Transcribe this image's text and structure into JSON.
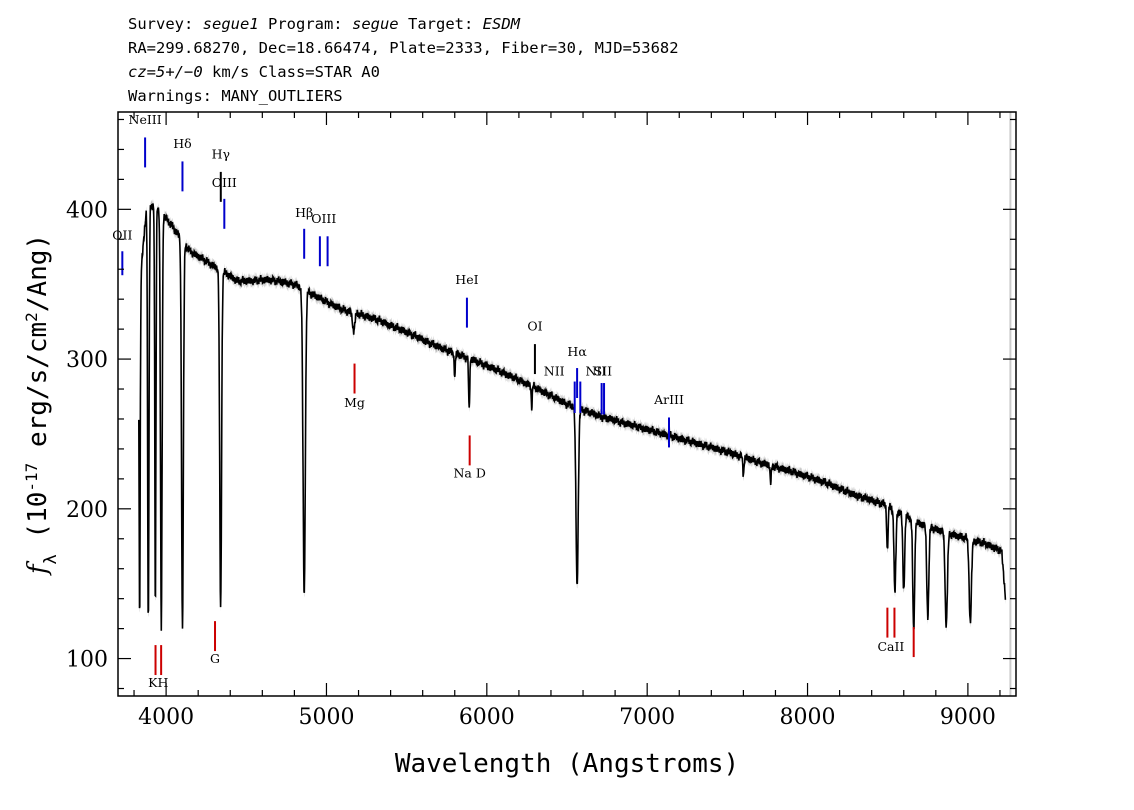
{
  "header": {
    "line1": {
      "survey_label": "Survey: ",
      "survey": "segue1",
      "program_label": " Program: ",
      "program": "segue",
      "target_label": " Target: ",
      "target": "ESDM"
    },
    "line2": "RA=299.68270, Dec=18.66474, Plate=2333, Fiber=30, MJD=53682",
    "line3": {
      "cz_label": "cz=5+/−0",
      "rest": " km/s Class=STAR A0"
    },
    "line4": "Warnings: MANY_OUTLIERS"
  },
  "chart_data": {
    "type": "line",
    "xlabel": "Wavelength (Angstroms)",
    "ylabel": "f_λ (10^-17 erg/s/cm^2/Ang)",
    "xlim": [
      3700,
      9300
    ],
    "ylim": [
      75,
      465
    ],
    "x_ticks": [
      "4000",
      "5000",
      "6000",
      "7000",
      "8000",
      "9000"
    ],
    "y_ticks": [
      "100",
      "200",
      "300",
      "400"
    ],
    "grid": false,
    "continuum": [
      [
        3830,
        340
      ],
      [
        3880,
        405
      ],
      [
        3950,
        400
      ],
      [
        4030,
        390
      ],
      [
        4150,
        372
      ],
      [
        4300,
        362
      ],
      [
        4450,
        352
      ],
      [
        4650,
        353
      ],
      [
        4800,
        350
      ],
      [
        4950,
        341
      ],
      [
        5100,
        333
      ],
      [
        5300,
        327
      ],
      [
        5500,
        318
      ],
      [
        5700,
        308
      ],
      [
        5900,
        300
      ],
      [
        6100,
        291
      ],
      [
        6300,
        281
      ],
      [
        6500,
        270
      ],
      [
        6700,
        262
      ],
      [
        6900,
        256
      ],
      [
        7100,
        250
      ],
      [
        7300,
        244
      ],
      [
        7500,
        238
      ],
      [
        7700,
        231
      ],
      [
        7900,
        225
      ],
      [
        8100,
        218
      ],
      [
        8300,
        209
      ],
      [
        8480,
        203
      ],
      [
        8700,
        190
      ],
      [
        8900,
        183
      ],
      [
        9100,
        177
      ],
      [
        9210,
        172
      ],
      [
        9235,
        140
      ]
    ],
    "absorption_lines": [
      {
        "x": 3835,
        "depth": 220,
        "w": 5
      },
      {
        "x": 3889,
        "depth": 280,
        "w": 6
      },
      {
        "x": 3933,
        "depth": 270,
        "w": 5
      },
      {
        "x": 3970,
        "depth": 280,
        "w": 7
      },
      {
        "x": 4102,
        "depth": 258,
        "w": 8
      },
      {
        "x": 4340,
        "depth": 228,
        "w": 8
      },
      {
        "x": 4861,
        "depth": 203,
        "w": 10
      },
      {
        "x": 5170,
        "depth": 12,
        "w": 10
      },
      {
        "x": 5800,
        "depth": 15,
        "w": 5
      },
      {
        "x": 5890,
        "depth": 35,
        "w": 5
      },
      {
        "x": 6280,
        "depth": 15,
        "w": 4
      },
      {
        "x": 6563,
        "depth": 118,
        "w": 10
      },
      {
        "x": 7600,
        "depth": 12,
        "w": 5
      },
      {
        "x": 7770,
        "depth": 12,
        "w": 5
      },
      {
        "x": 8498,
        "depth": 30,
        "w": 6
      },
      {
        "x": 8545,
        "depth": 55,
        "w": 8
      },
      {
        "x": 8600,
        "depth": 50,
        "w": 8
      },
      {
        "x": 8662,
        "depth": 75,
        "w": 8
      },
      {
        "x": 8750,
        "depth": 60,
        "w": 9
      },
      {
        "x": 8865,
        "depth": 62,
        "w": 10
      },
      {
        "x": 9015,
        "depth": 55,
        "w": 10
      }
    ],
    "line_markers": [
      {
        "label": "OII",
        "x": 3727,
        "y1": 372,
        "y2": 356,
        "label_y": 380,
        "color": "#0000cc"
      },
      {
        "label": "NeIII",
        "x": 3869,
        "y1": 448,
        "y2": 428,
        "label_y": 457,
        "color": "#0000cc"
      },
      {
        "label": "Hδ",
        "x": 4102,
        "y1": 432,
        "y2": 412,
        "label_y": 441,
        "color": "#0000cc"
      },
      {
        "label": "Hγ",
        "x": 4341,
        "y1": 425,
        "y2": 405,
        "label_y": 434,
        "color": "#000000"
      },
      {
        "label": "OIII",
        "x": 4363,
        "y1": 407,
        "y2": 387,
        "label_y": 415,
        "color": "#0000cc"
      },
      {
        "label": "Hβ",
        "x": 4861,
        "y1": 387,
        "y2": 367,
        "label_y": 395,
        "color": "#0000cc"
      },
      {
        "label": "OIII",
        "x": 5007,
        "y1": 382,
        "y2": 362,
        "label_y": 391,
        "color": "#0000cc",
        "pair": 4959
      },
      {
        "label": "HeI",
        "x": 5876,
        "y1": 341,
        "y2": 321,
        "label_y": 350,
        "color": "#0000cc"
      },
      {
        "label": "OI",
        "x": 6300,
        "y1": 310,
        "y2": 290,
        "label_y": 319,
        "color": "#000000"
      },
      {
        "label": "Hα",
        "x": 6563,
        "y1": 294,
        "y2": 274,
        "label_y": 302,
        "color": "#0000cc"
      },
      {
        "label": "NII",
        "x": 6548,
        "y1": 285,
        "y2": 264,
        "label_y": 289,
        "color": "#0000cc",
        "pair": 6583,
        "label_x": 6420
      },
      {
        "label": "SII",
        "x": 6716,
        "y1": 284,
        "y2": 263,
        "label_y": 289,
        "color": "#0000cc",
        "pair": 6731
      },
      {
        "label": "NII",
        "x": 6583,
        "y1": 284,
        "y2": 264,
        "label_y": 289,
        "color": "#0000cc",
        "label_x": 6680,
        "no_line": true
      },
      {
        "label": "ArIII",
        "x": 7136,
        "y1": 261,
        "y2": 241,
        "label_y": 270,
        "color": "#0000cc"
      },
      {
        "label": "Mg",
        "x": 5175,
        "y1": 297,
        "y2": 277,
        "label_y": 268,
        "color": "#cc0000"
      },
      {
        "label": "Na D",
        "x": 5893,
        "y1": 249,
        "y2": 229,
        "label_y": 221,
        "color": "#cc0000"
      },
      {
        "label": "G",
        "x": 4305,
        "y1": 125,
        "y2": 105,
        "label_y": 97,
        "color": "#cc0000"
      },
      {
        "label": "K",
        "x": 3934,
        "y1": 109,
        "y2": 89,
        "label_y": 81,
        "color": "#cc0000"
      },
      {
        "label": "H",
        "x": 3969,
        "y1": 109,
        "y2": 89,
        "label_y": 81,
        "color": "#cc0000"
      },
      {
        "label": "CaII",
        "x": 8498,
        "y1": 134,
        "y2": 114,
        "label_y": 105,
        "color": "#cc0000",
        "pair": 8542,
        "third": 8662,
        "third_y1": 121,
        "third_y2": 101
      }
    ]
  }
}
